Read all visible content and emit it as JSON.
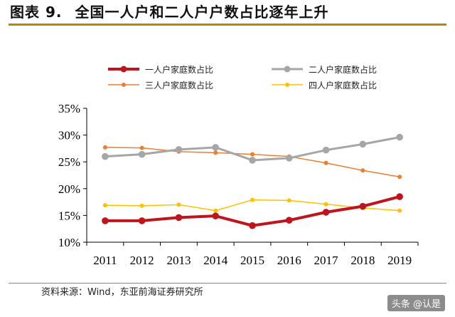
{
  "header": {
    "figure_number": "图表 9.",
    "title": "全国一人户和二人户户数占比逐年上升"
  },
  "source": "资料来源：Wind，东亚前海证券研究所",
  "watermark": "头条 @认是",
  "chart_data": {
    "type": "line",
    "title": "全国一人户和二人户户数占比逐年上升",
    "xlabel": "",
    "ylabel": "",
    "x": [
      "2011",
      "2012",
      "2013",
      "2014",
      "2015",
      "2016",
      "2017",
      "2018",
      "2019"
    ],
    "ylim": [
      10,
      35
    ],
    "yticks": [
      10,
      15,
      20,
      25,
      30,
      35
    ],
    "ytick_labels": [
      "10%",
      "15%",
      "20%",
      "25%",
      "30%",
      "35%"
    ],
    "legend_position": "top",
    "grid": false,
    "series": [
      {
        "name": "一人户家庭数占比",
        "color": "#c0141c",
        "width": 4,
        "values": [
          14.0,
          14.0,
          14.6,
          14.9,
          13.1,
          14.1,
          15.6,
          16.7,
          18.5
        ]
      },
      {
        "name": "二人户家庭数占比",
        "color": "#a6a6a6",
        "width": 3,
        "values": [
          26.0,
          26.4,
          27.3,
          27.7,
          25.3,
          25.7,
          27.2,
          28.3,
          29.6
        ]
      },
      {
        "name": "三人户家庭数占比",
        "color": "#ed7d31",
        "width": 1.5,
        "values": [
          27.7,
          27.6,
          26.9,
          26.7,
          26.4,
          26.0,
          24.8,
          23.4,
          22.2
        ]
      },
      {
        "name": "四人户家庭数占比",
        "color": "#ffc000",
        "width": 1.5,
        "values": [
          16.9,
          16.8,
          17.0,
          15.9,
          17.9,
          17.8,
          17.1,
          16.4,
          15.9
        ]
      }
    ]
  }
}
